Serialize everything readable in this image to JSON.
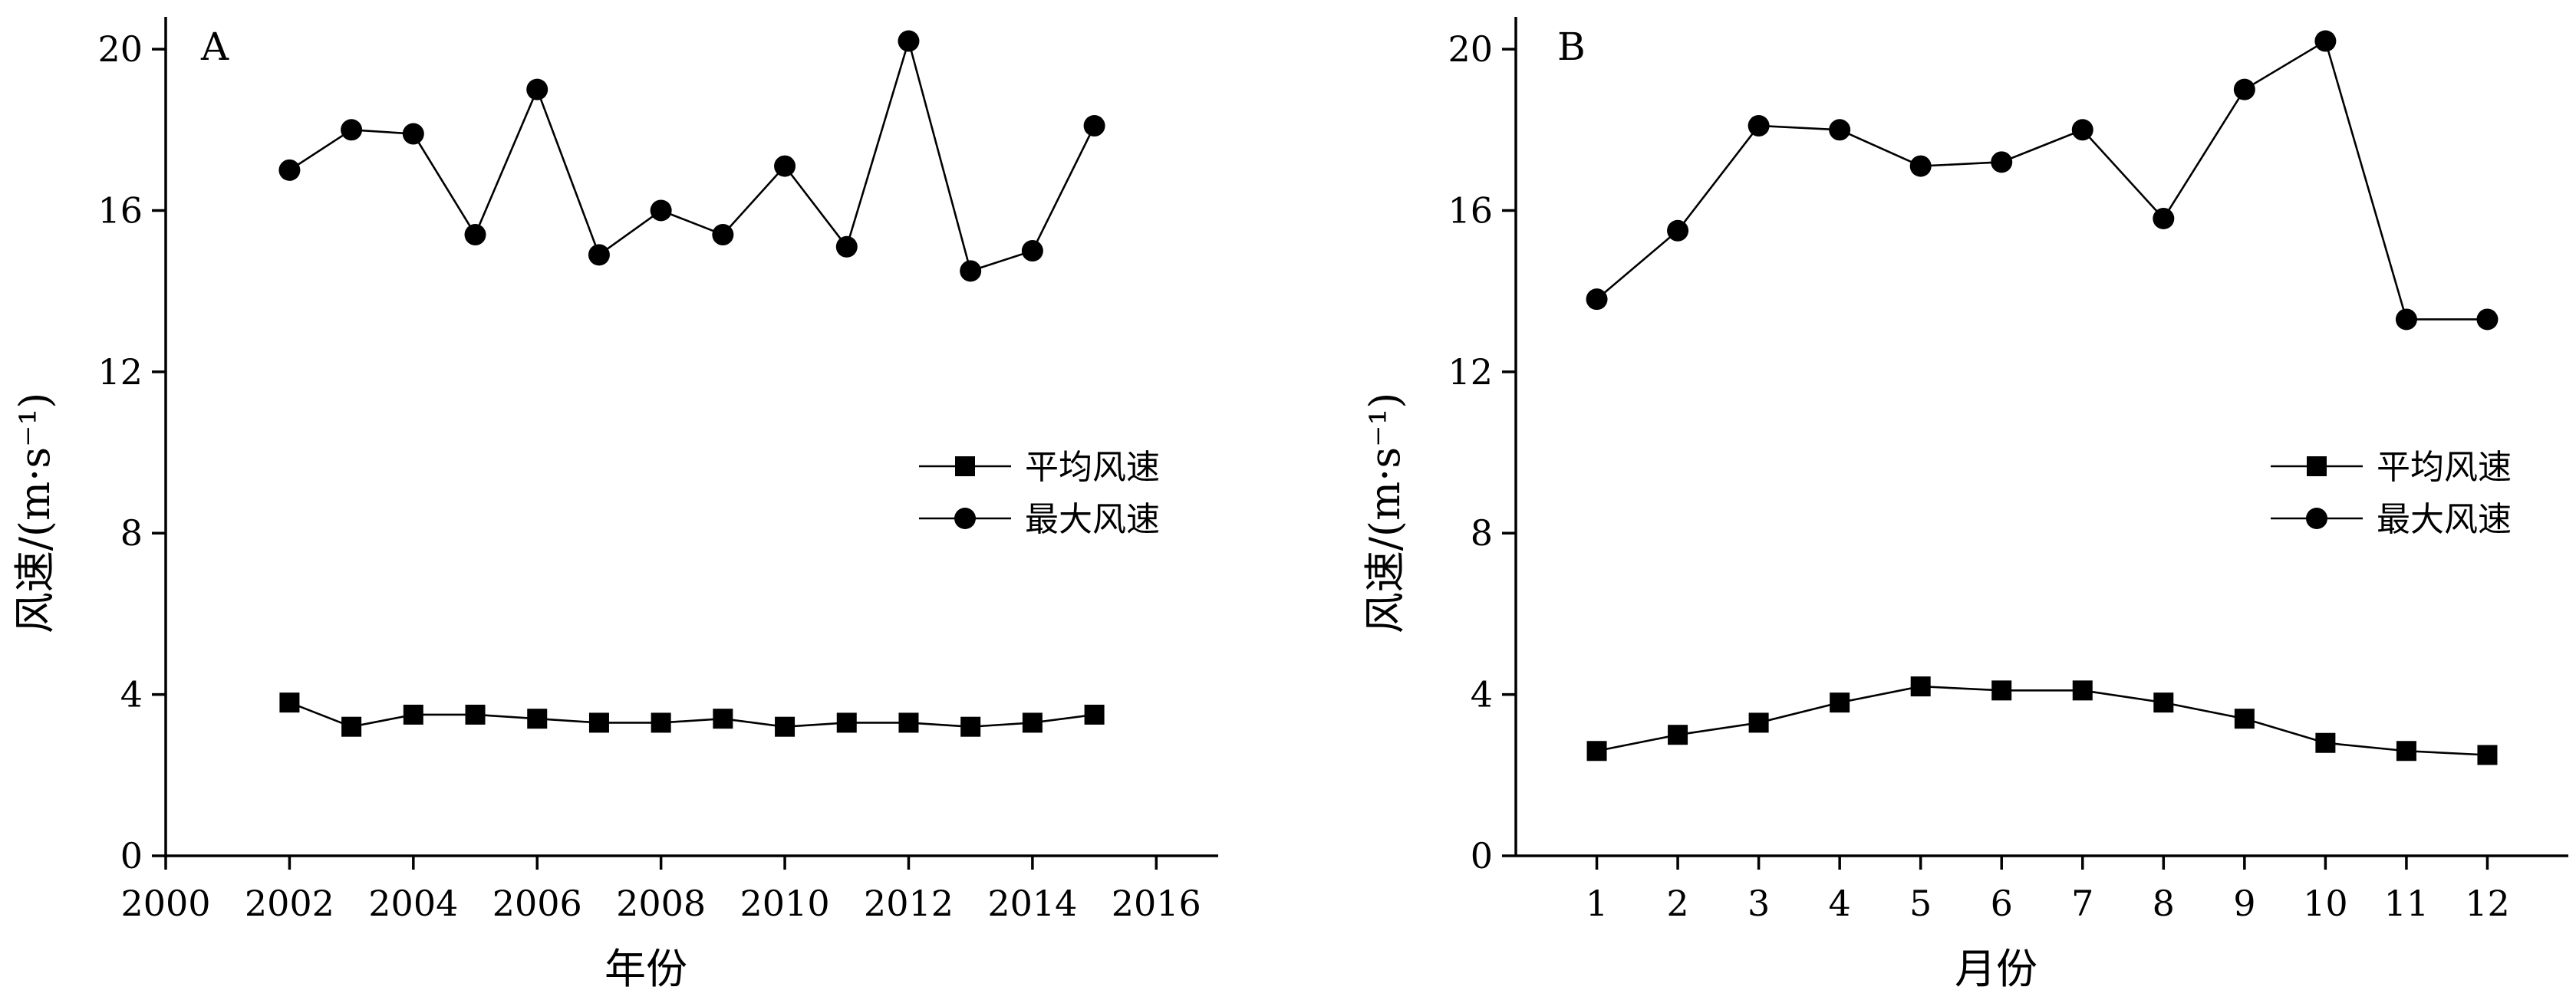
{
  "chart_data": [
    {
      "type": "line",
      "panel_label": "A",
      "xlabel": "年份",
      "ylabel": "风速/(m·s⁻¹)",
      "xlim": [
        2000,
        2017
      ],
      "ylim": [
        0,
        20.8
      ],
      "x_ticks": [
        2000,
        2002,
        2004,
        2006,
        2008,
        2010,
        2012,
        2014,
        2016
      ],
      "y_ticks": [
        0,
        4,
        8,
        12,
        16,
        20
      ],
      "x": [
        2002,
        2003,
        2004,
        2005,
        2006,
        2007,
        2008,
        2009,
        2010,
        2011,
        2012,
        2013,
        2014,
        2015
      ],
      "series": [
        {
          "name": "平均风速",
          "marker": "square",
          "values": [
            3.8,
            3.2,
            3.5,
            3.5,
            3.4,
            3.3,
            3.3,
            3.4,
            3.2,
            3.3,
            3.3,
            3.2,
            3.3,
            3.5
          ]
        },
        {
          "name": "最大风速",
          "marker": "circle",
          "values": [
            17.0,
            18.0,
            17.9,
            15.4,
            19.0,
            14.9,
            16.0,
            15.4,
            17.1,
            15.1,
            20.2,
            14.5,
            15.0,
            18.1
          ]
        }
      ],
      "legend_position": "right"
    },
    {
      "type": "line",
      "panel_label": "B",
      "xlabel": "月份",
      "ylabel": "风速/(m·s⁻¹)",
      "xlim": [
        0,
        13
      ],
      "ylim": [
        0,
        20.8
      ],
      "x_ticks": [
        1,
        2,
        3,
        4,
        5,
        6,
        7,
        8,
        9,
        10,
        11,
        12
      ],
      "y_ticks": [
        0,
        4,
        8,
        12,
        16,
        20
      ],
      "x": [
        1,
        2,
        3,
        4,
        5,
        6,
        7,
        8,
        9,
        10,
        11,
        12
      ],
      "series": [
        {
          "name": "平均风速",
          "marker": "square",
          "values": [
            2.6,
            3.0,
            3.3,
            3.8,
            4.2,
            4.1,
            4.1,
            3.8,
            3.4,
            2.8,
            2.6,
            2.5
          ]
        },
        {
          "name": "最大风速",
          "marker": "circle",
          "values": [
            13.8,
            15.5,
            18.1,
            18.0,
            17.1,
            17.2,
            18.0,
            15.8,
            19.0,
            20.2,
            13.3,
            13.3
          ]
        }
      ],
      "legend_position": "right"
    }
  ]
}
